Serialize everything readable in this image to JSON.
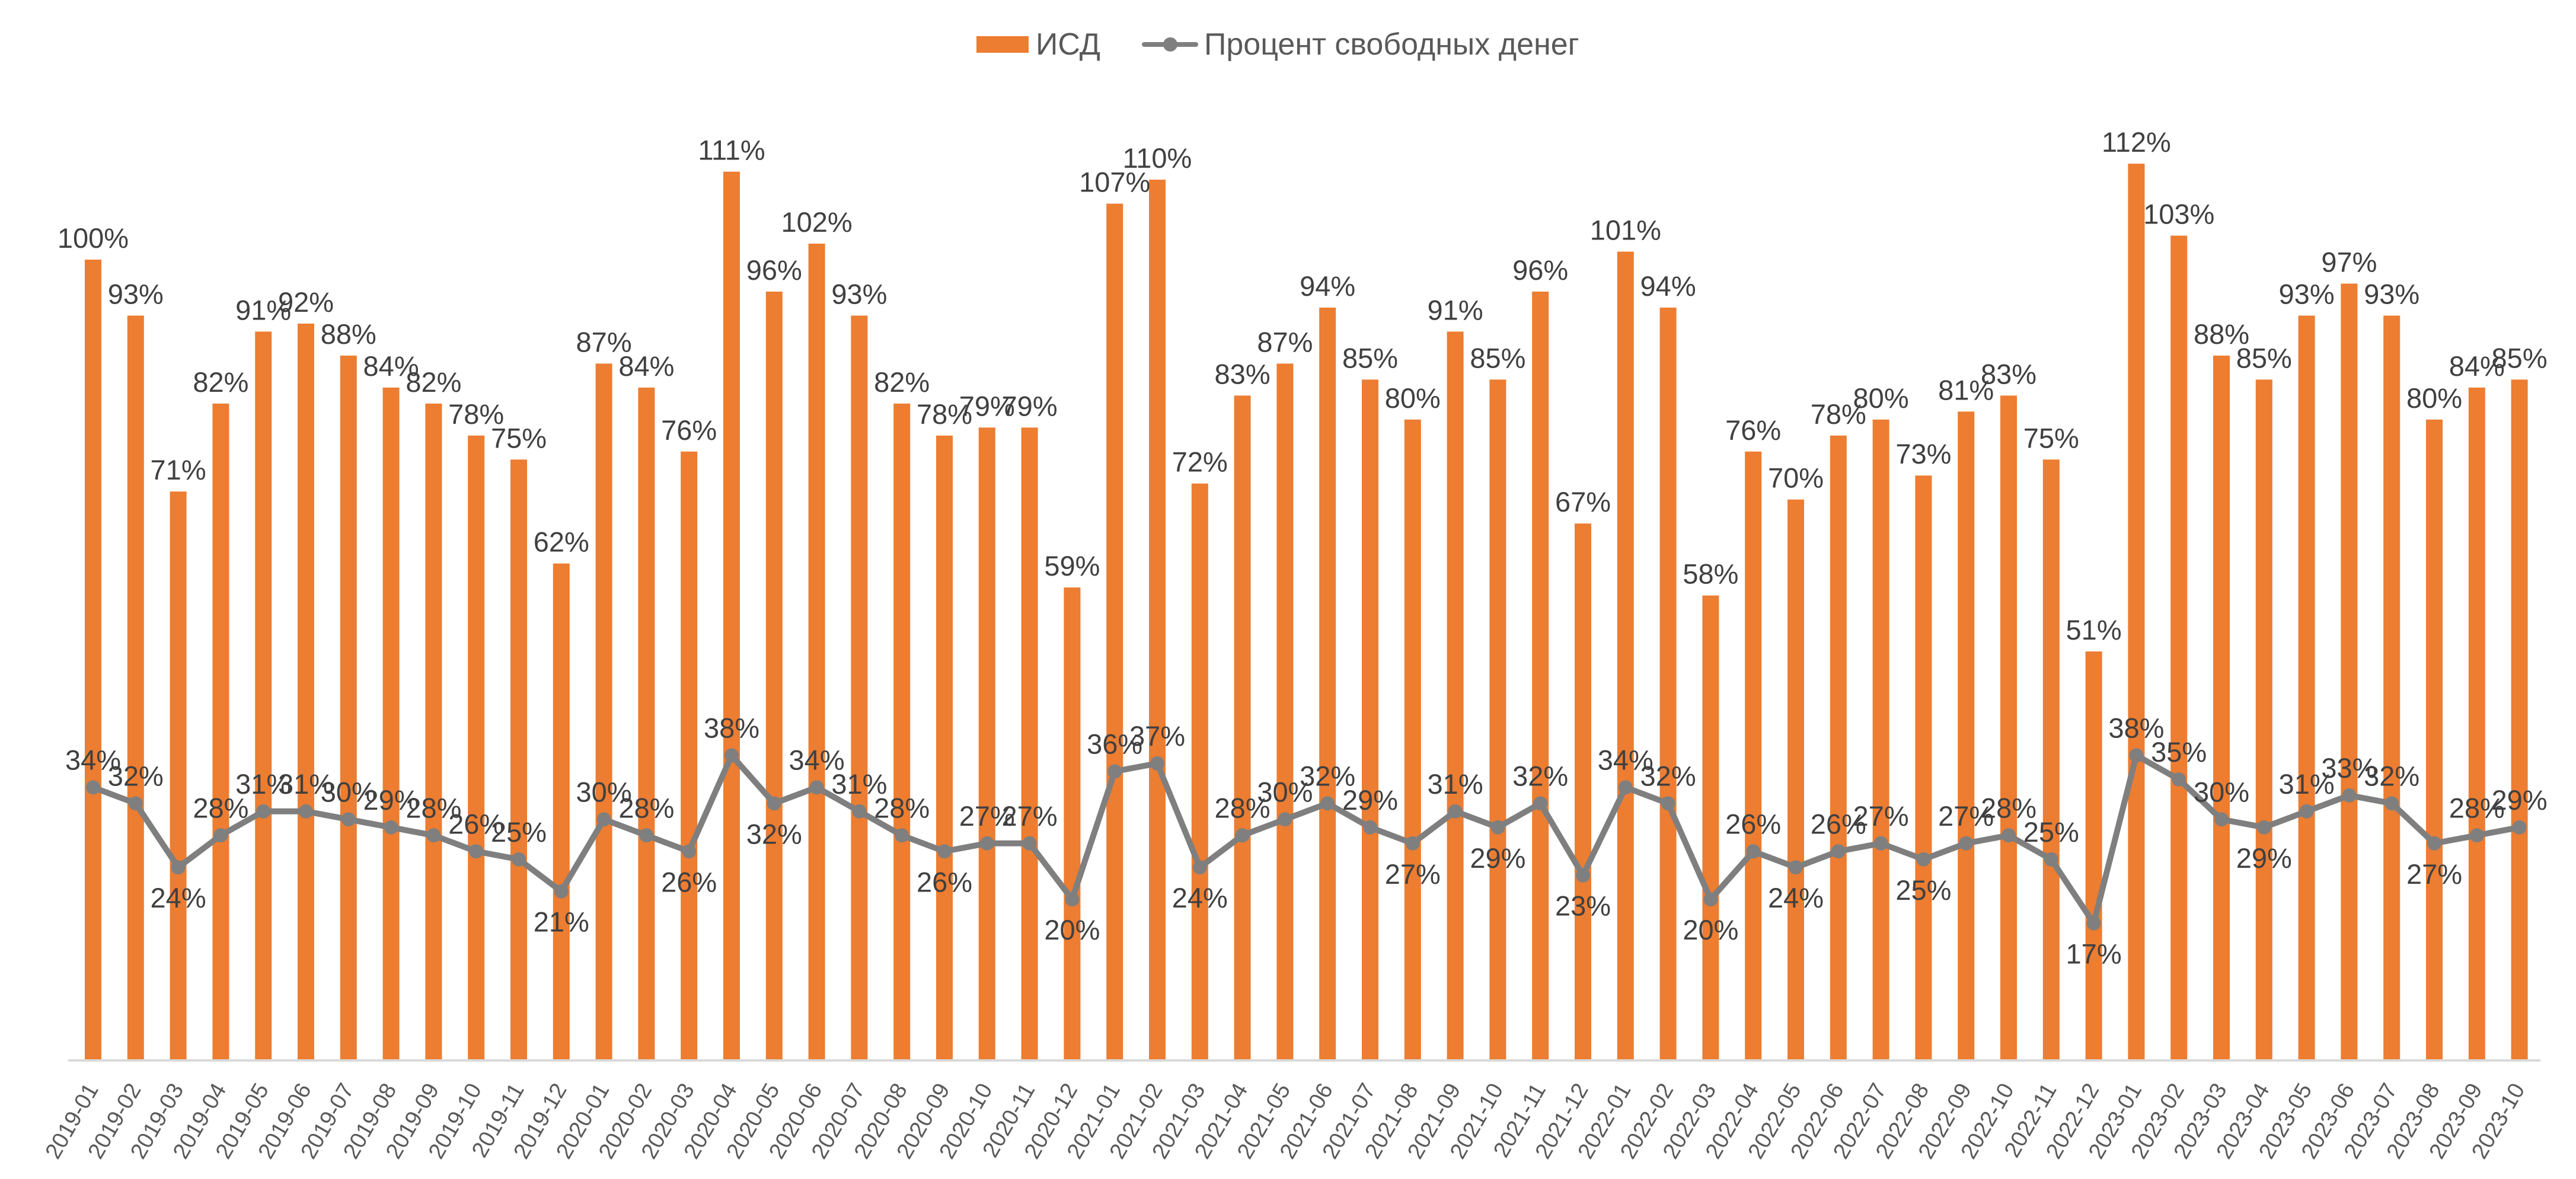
{
  "chart_data": {
    "type": "bar+line",
    "title": "",
    "xlabel": "",
    "ylabel": "",
    "ylim": [
      0,
      115
    ],
    "grid": false,
    "legend_position": "top-center",
    "colors": {
      "bars": "#ED7D31",
      "line": "#7F7F7F",
      "labels": "#404040",
      "axis_text": "#595959",
      "axis_line": "#D9D9D9"
    },
    "categories": [
      "2019-01",
      "2019-02",
      "2019-03",
      "2019-04",
      "2019-05",
      "2019-06",
      "2019-07",
      "2019-08",
      "2019-09",
      "2019-10",
      "2019-11",
      "2019-12",
      "2020-01",
      "2020-02",
      "2020-03",
      "2020-04",
      "2020-05",
      "2020-06",
      "2020-07",
      "2020-08",
      "2020-09",
      "2020-10",
      "2020-11",
      "2020-12",
      "2021-01",
      "2021-02",
      "2021-03",
      "2021-04",
      "2021-05",
      "2021-06",
      "2021-07",
      "2021-08",
      "2021-09",
      "2021-10",
      "2021-11",
      "2021-12",
      "2022-01",
      "2022-02",
      "2022-03",
      "2022-04",
      "2022-05",
      "2022-06",
      "2022-07",
      "2022-08",
      "2022-09",
      "2022-10",
      "2022-11",
      "2022-12",
      "2023-01",
      "2023-02",
      "2023-03",
      "2023-04",
      "2023-05",
      "2023-06",
      "2023-07",
      "2023-08",
      "2023-09",
      "2023-10"
    ],
    "series": [
      {
        "name": "ИСД",
        "type": "bar",
        "unit": "%",
        "values": [
          100,
          93,
          71,
          82,
          91,
          92,
          88,
          84,
          82,
          78,
          75,
          62,
          87,
          84,
          76,
          111,
          96,
          102,
          93,
          82,
          78,
          79,
          79,
          59,
          107,
          110,
          72,
          83,
          87,
          94,
          85,
          80,
          91,
          85,
          96,
          67,
          101,
          94,
          58,
          76,
          70,
          78,
          80,
          73,
          81,
          83,
          75,
          51,
          112,
          103,
          88,
          85,
          93,
          97,
          93,
          80,
          84,
          85
        ]
      },
      {
        "name": "Процент свободных денег",
        "type": "line",
        "unit": "%",
        "values": [
          34,
          32,
          24,
          28,
          31,
          31,
          30,
          29,
          28,
          26,
          25,
          21,
          30,
          28,
          26,
          38,
          32,
          34,
          31,
          28,
          26,
          27,
          27,
          20,
          36,
          37,
          24,
          28,
          30,
          32,
          29,
          27,
          31,
          29,
          32,
          23,
          34,
          32,
          20,
          26,
          24,
          26,
          27,
          25,
          27,
          28,
          25,
          17,
          38,
          35,
          30,
          29,
          31,
          33,
          32,
          27,
          28,
          29
        ]
      }
    ]
  },
  "legend": {
    "items": [
      {
        "label": "ИСД",
        "kind": "bar"
      },
      {
        "label": "Процент свободных денег",
        "kind": "line"
      }
    ]
  }
}
